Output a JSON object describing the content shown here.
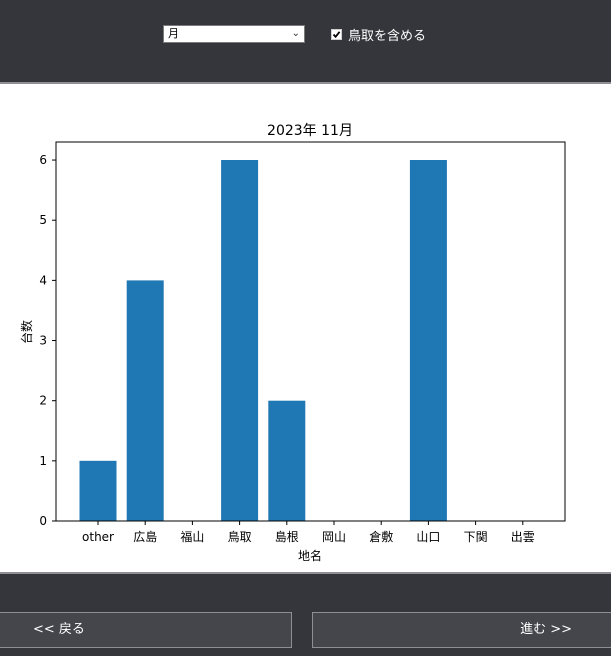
{
  "controls": {
    "period_select_value": "月",
    "include_tottori_checked": true,
    "include_tottori_label": "鳥取を含める"
  },
  "navigation": {
    "back_label": "<< 戻る",
    "next_label": "進む >>"
  },
  "colors": {
    "bar": "#1f77b4",
    "panel_background": "#35363b",
    "plot_background": "#ffffff"
  },
  "chart_data": {
    "type": "bar",
    "title": "2023年  11月",
    "xlabel": "地名",
    "ylabel": "台数",
    "categories": [
      "other",
      "広島",
      "福山",
      "鳥取",
      "島根",
      "岡山",
      "倉敷",
      "山口",
      "下関",
      "出雲"
    ],
    "values": [
      1,
      4,
      0,
      6,
      2,
      0,
      0,
      6,
      0,
      0
    ],
    "ylim": [
      0,
      6.3
    ],
    "yticks": [
      0,
      1,
      2,
      3,
      4,
      5,
      6
    ],
    "grid": false
  }
}
